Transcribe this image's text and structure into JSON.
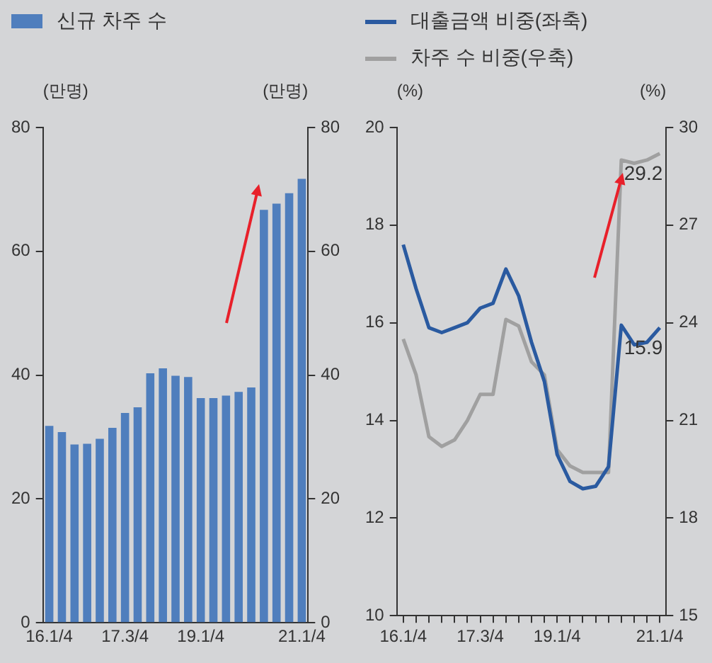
{
  "chart_data": [
    {
      "type": "bar",
      "categories": [
        "16.1/4",
        null,
        null,
        null,
        null,
        null,
        "17.3/4",
        null,
        null,
        null,
        null,
        null,
        "19.1/4",
        null,
        null,
        null,
        null,
        null,
        null,
        null,
        "21.1/4"
      ],
      "series": [
        {
          "name": "신규 차주 수",
          "color": "#4f7ebd",
          "values": [
            31.8,
            30.8,
            28.8,
            28.9,
            29.7,
            31.5,
            33.9,
            34.8,
            40.3,
            41.1,
            39.9,
            39.7,
            36.3,
            36.3,
            36.7,
            37.3,
            38.0,
            66.7,
            67.7,
            69.4,
            71.7
          ]
        }
      ],
      "ylabel": "(만명)",
      "y2label": "(만명)",
      "ylim": [
        0,
        80
      ],
      "yticks": [
        0,
        20,
        40,
        60,
        80
      ],
      "y2lim": [
        0,
        80
      ],
      "y2ticks": [
        0,
        20,
        40,
        60,
        80
      ],
      "legend": "top left",
      "grid": false
    },
    {
      "type": "line",
      "categories": [
        "16.1/4",
        null,
        null,
        null,
        null,
        null,
        "17.3/4",
        null,
        null,
        null,
        null,
        null,
        "19.1/4",
        null,
        null,
        null,
        null,
        null,
        null,
        null,
        "21.1/4"
      ],
      "series": [
        {
          "name": "대출금액 비중(좌축)",
          "color": "#2a5aa0",
          "values": [
            17.6,
            16.7,
            15.9,
            15.8,
            15.9,
            16.0,
            16.3,
            16.4,
            17.1,
            16.55,
            15.6,
            14.8,
            13.3,
            12.75,
            12.6,
            12.65,
            13.05,
            15.95,
            15.55,
            15.6,
            15.9
          ],
          "value_labels": [
            null,
            null,
            null,
            null,
            null,
            null,
            null,
            null,
            null,
            null,
            null,
            null,
            null,
            null,
            null,
            null,
            null,
            null,
            null,
            null,
            "15.9"
          ]
        },
        {
          "name": "차주 수 비중(우축)",
          "color": "#a0a0a0",
          "axis": "y2",
          "values": [
            23.5,
            22.4,
            20.5,
            20.2,
            20.4,
            21.0,
            21.8,
            21.8,
            24.1,
            23.9,
            22.8,
            22.4,
            20.1,
            19.6,
            19.4,
            19.4,
            19.4,
            29.0,
            28.9,
            29.0,
            29.2
          ],
          "value_labels": [
            null,
            null,
            null,
            null,
            null,
            null,
            null,
            null,
            null,
            null,
            null,
            null,
            null,
            null,
            null,
            null,
            null,
            null,
            null,
            null,
            "29.2"
          ]
        }
      ],
      "ylabel": "(%)",
      "y2label": "(%)",
      "ylim": [
        10,
        20
      ],
      "yticks": [
        10,
        12,
        14,
        16,
        18,
        20
      ],
      "y2lim": [
        15,
        30
      ],
      "y2ticks": [
        15,
        18,
        21,
        24,
        27,
        30
      ],
      "legend": "top left",
      "grid": false
    }
  ]
}
